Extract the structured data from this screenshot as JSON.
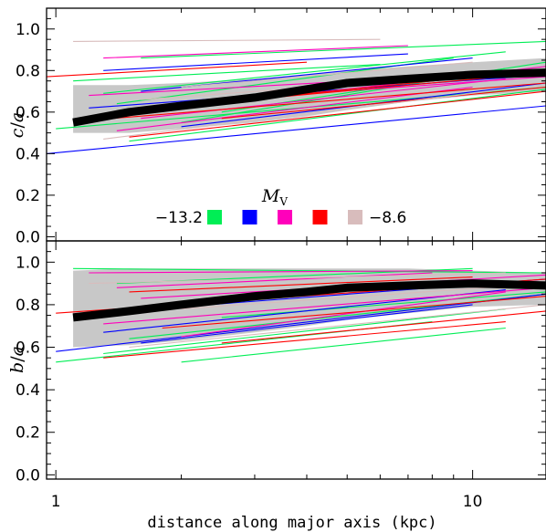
{
  "chart_data": {
    "type": "line",
    "xlabel": "distance along major axis (kpc)",
    "xscale": "log",
    "xlim": [
      0.95,
      15
    ],
    "x_ticks": [
      "1",
      "10"
    ],
    "colors": {
      "bright": "#00ee55",
      "mid_bright": "#0000ff",
      "middle": "#ff00bb",
      "mid_faint": "#ff0000",
      "faint": "#d8bcbc",
      "band": "#c8c8c8",
      "median": "#000000"
    },
    "legend": {
      "title_symbol": "M",
      "title_subscript": "V",
      "left_value": "−13.2",
      "right_value": "−8.6",
      "swatch_order": [
        "bright",
        "mid_bright",
        "middle",
        "mid_faint",
        "faint"
      ],
      "placement": "bottom-center of top panel"
    },
    "panels": [
      {
        "id": "c_over_a",
        "ylabel_num": "c",
        "ylabel_den": "a",
        "ylim": [
          -0.02,
          1.1
        ],
        "y_ticks": [
          "0.0",
          "0.2",
          "0.4",
          "0.6",
          "0.8",
          "1.0"
        ],
        "median": {
          "x": [
            1.1,
            1.5,
            2,
            3,
            4,
            5,
            7,
            10,
            15
          ],
          "y": [
            0.55,
            0.6,
            0.63,
            0.67,
            0.71,
            0.74,
            0.76,
            0.78,
            0.79
          ]
        },
        "band": {
          "x": [
            1.1,
            1.5,
            2,
            3,
            4,
            5,
            7,
            10,
            15
          ],
          "lower": [
            0.5,
            0.5,
            0.52,
            0.55,
            0.58,
            0.61,
            0.65,
            0.68,
            0.7
          ],
          "upper": [
            0.73,
            0.73,
            0.74,
            0.76,
            0.78,
            0.8,
            0.82,
            0.84,
            0.86
          ]
        },
        "series": [
          {
            "color": "bright",
            "x": [
              1.0,
              15
            ],
            "y": [
              0.52,
              0.72
            ]
          },
          {
            "color": "bright",
            "x": [
              1.2,
              14
            ],
            "y": [
              0.58,
              0.8
            ]
          },
          {
            "color": "bright",
            "x": [
              1.3,
              12
            ],
            "y": [
              0.69,
              0.89
            ]
          },
          {
            "color": "bright",
            "x": [
              1.5,
              15
            ],
            "y": [
              0.46,
              0.71
            ]
          },
          {
            "color": "bright",
            "x": [
              1.6,
              15
            ],
            "y": [
              0.86,
              0.94
            ]
          },
          {
            "color": "bright",
            "x": [
              2.0,
              12
            ],
            "y": [
              0.55,
              0.81
            ]
          },
          {
            "color": "bright",
            "x": [
              1.4,
              9
            ],
            "y": [
              0.64,
              0.86
            ]
          },
          {
            "color": "bright",
            "x": [
              2.5,
              15
            ],
            "y": [
              0.6,
              0.84
            ]
          },
          {
            "color": "bright",
            "x": [
              1.1,
              6
            ],
            "y": [
              0.75,
              0.83
            ]
          },
          {
            "color": "mid_bright",
            "x": [
              0.95,
              15
            ],
            "y": [
              0.4,
              0.63
            ]
          },
          {
            "color": "mid_bright",
            "x": [
              1.2,
              15
            ],
            "y": [
              0.62,
              0.78
            ]
          },
          {
            "color": "mid_bright",
            "x": [
              1.6,
              10
            ],
            "y": [
              0.7,
              0.86
            ]
          },
          {
            "color": "mid_bright",
            "x": [
              2.0,
              15
            ],
            "y": [
              0.53,
              0.74
            ]
          },
          {
            "color": "mid_bright",
            "x": [
              1.3,
              7
            ],
            "y": [
              0.8,
              0.88
            ]
          },
          {
            "color": "middle",
            "x": [
              1.3,
              7
            ],
            "y": [
              0.86,
              0.92
            ]
          },
          {
            "color": "middle",
            "x": [
              1.2,
              15
            ],
            "y": [
              0.68,
              0.8
            ]
          },
          {
            "color": "middle",
            "x": [
              1.6,
              12
            ],
            "y": [
              0.57,
              0.76
            ]
          },
          {
            "color": "middle",
            "x": [
              2.0,
              15
            ],
            "y": [
              0.62,
              0.82
            ]
          },
          {
            "color": "middle",
            "x": [
              1.4,
              10
            ],
            "y": [
              0.51,
              0.72
            ]
          },
          {
            "color": "middle",
            "x": [
              2.5,
              15
            ],
            "y": [
              0.66,
              0.77
            ]
          },
          {
            "color": "mid_faint",
            "x": [
              0.95,
              4
            ],
            "y": [
              0.77,
              0.84
            ]
          },
          {
            "color": "mid_faint",
            "x": [
              1.2,
              15
            ],
            "y": [
              0.56,
              0.74
            ]
          },
          {
            "color": "mid_faint",
            "x": [
              1.5,
              15
            ],
            "y": [
              0.48,
              0.7
            ]
          },
          {
            "color": "mid_faint",
            "x": [
              2.0,
              15
            ],
            "y": [
              0.63,
              0.79
            ]
          },
          {
            "color": "mid_faint",
            "x": [
              1.3,
              9
            ],
            "y": [
              0.59,
              0.76
            ]
          },
          {
            "color": "mid_faint",
            "x": [
              2.5,
              15
            ],
            "y": [
              0.57,
              0.72
            ]
          },
          {
            "color": "faint",
            "x": [
              1.1,
              6
            ],
            "y": [
              0.94,
              0.95
            ]
          },
          {
            "color": "faint",
            "x": [
              1.3,
              12
            ],
            "y": [
              0.47,
              0.71
            ]
          },
          {
            "color": "faint",
            "x": [
              1.6,
              15
            ],
            "y": [
              0.66,
              0.8
            ]
          },
          {
            "color": "faint",
            "x": [
              2.0,
              10
            ],
            "y": [
              0.72,
              0.84
            ]
          }
        ]
      },
      {
        "id": "b_over_a",
        "ylabel_num": "b",
        "ylabel_den": "a",
        "ylim": [
          -0.02,
          1.1
        ],
        "y_ticks": [
          "0.0",
          "0.2",
          "0.4",
          "0.6",
          "0.8",
          "1.0"
        ],
        "median": {
          "x": [
            1.1,
            1.5,
            2,
            3,
            4,
            5,
            7,
            10,
            15
          ],
          "y": [
            0.74,
            0.77,
            0.8,
            0.84,
            0.86,
            0.88,
            0.89,
            0.9,
            0.89
          ]
        },
        "band": {
          "x": [
            1.1,
            1.5,
            2,
            3,
            4,
            5,
            7,
            10,
            15
          ],
          "lower": [
            0.6,
            0.61,
            0.63,
            0.67,
            0.7,
            0.73,
            0.76,
            0.79,
            0.8
          ],
          "upper": [
            0.96,
            0.97,
            0.97,
            0.97,
            0.97,
            0.97,
            0.97,
            0.96,
            0.95
          ]
        },
        "series": [
          {
            "color": "bright",
            "x": [
              1.0,
              8
            ],
            "y": [
              0.53,
              0.72
            ]
          },
          {
            "color": "bright",
            "x": [
              1.3,
              12
            ],
            "y": [
              0.57,
              0.78
            ]
          },
          {
            "color": "bright",
            "x": [
              1.1,
              15
            ],
            "y": [
              0.97,
              0.95
            ]
          },
          {
            "color": "bright",
            "x": [
              1.5,
              15
            ],
            "y": [
              0.64,
              0.85
            ]
          },
          {
            "color": "bright",
            "x": [
              2.0,
              12
            ],
            "y": [
              0.53,
              0.69
            ]
          },
          {
            "color": "bright",
            "x": [
              1.4,
              10
            ],
            "y": [
              0.9,
              0.97
            ]
          },
          {
            "color": "bright",
            "x": [
              2.5,
              15
            ],
            "y": [
              0.74,
              0.86
            ]
          },
          {
            "color": "mid_bright",
            "x": [
              1.0,
              15
            ],
            "y": [
              0.58,
              0.85
            ]
          },
          {
            "color": "mid_bright",
            "x": [
              1.3,
              12
            ],
            "y": [
              0.67,
              0.87
            ]
          },
          {
            "color": "mid_bright",
            "x": [
              2.0,
              15
            ],
            "y": [
              0.79,
              0.92
            ]
          },
          {
            "color": "mid_bright",
            "x": [
              1.6,
              10
            ],
            "y": [
              0.62,
              0.8
            ]
          },
          {
            "color": "middle",
            "x": [
              1.2,
              10
            ],
            "y": [
              0.95,
              0.96
            ]
          },
          {
            "color": "middle",
            "x": [
              1.3,
              15
            ],
            "y": [
              0.71,
              0.88
            ]
          },
          {
            "color": "middle",
            "x": [
              1.6,
              15
            ],
            "y": [
              0.83,
              0.94
            ]
          },
          {
            "color": "middle",
            "x": [
              2.0,
              12
            ],
            "y": [
              0.65,
              0.86
            ]
          },
          {
            "color": "middle",
            "x": [
              1.4,
              8
            ],
            "y": [
              0.88,
              0.95
            ]
          },
          {
            "color": "mid_faint",
            "x": [
              1.0,
              15
            ],
            "y": [
              0.76,
              0.92
            ]
          },
          {
            "color": "mid_faint",
            "x": [
              1.3,
              12
            ],
            "y": [
              0.55,
              0.72
            ]
          },
          {
            "color": "mid_faint",
            "x": [
              1.8,
              15
            ],
            "y": [
              0.69,
              0.84
            ]
          },
          {
            "color": "mid_faint",
            "x": [
              1.5,
              10
            ],
            "y": [
              0.86,
              0.93
            ]
          },
          {
            "color": "mid_faint",
            "x": [
              2.5,
              15
            ],
            "y": [
              0.62,
              0.77
            ]
          },
          {
            "color": "faint",
            "x": [
              1.2,
              12
            ],
            "y": [
              0.9,
              0.95
            ]
          },
          {
            "color": "faint",
            "x": [
              1.5,
              15
            ],
            "y": [
              0.6,
              0.8
            ]
          },
          {
            "color": "faint",
            "x": [
              2.0,
              15
            ],
            "y": [
              0.78,
              0.9
            ]
          }
        ]
      }
    ]
  }
}
